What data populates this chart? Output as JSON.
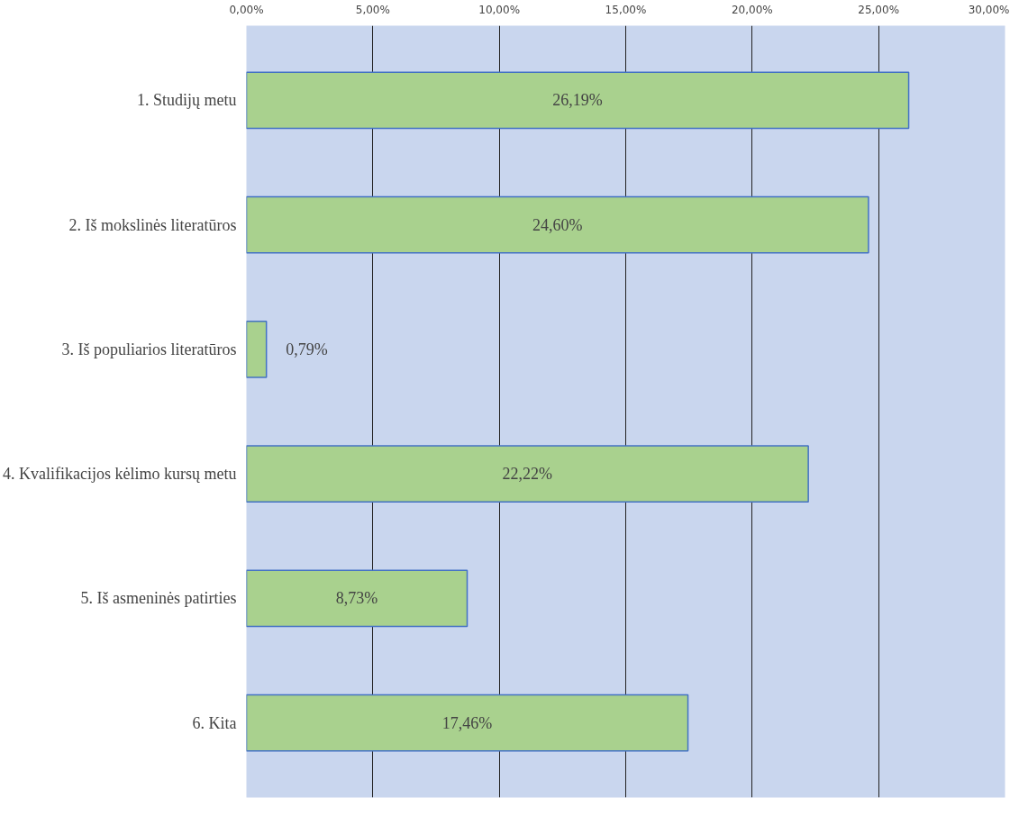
{
  "chart_data": {
    "type": "bar",
    "orientation": "horizontal",
    "categories": [
      "1. Studijų metu",
      "2. Iš mokslinės literatūros",
      "3. Iš populiarios literatūros",
      "4. Kvalifikacijos kėlimo kursų metu",
      "5. Iš asmeninės patirties",
      "6. Kita"
    ],
    "values": [
      26.19,
      24.6,
      0.79,
      22.22,
      8.73,
      17.46
    ],
    "value_labels": [
      "26,19%",
      "24,60%",
      "0,79%",
      "22,22%",
      "8,73%",
      "17,46%"
    ],
    "color": "#a9d18e",
    "xlim": [
      0,
      30
    ],
    "xticks": [
      {
        "value": 0,
        "label": "0,00%"
      },
      {
        "value": 5,
        "label": "5,00%"
      },
      {
        "value": 10,
        "label": "10,00%"
      },
      {
        "value": 15,
        "label": "15,00%"
      },
      {
        "value": 20,
        "label": "20,00%"
      },
      {
        "value": 25,
        "label": "25,00%"
      },
      {
        "value": 30,
        "label": "30,00%"
      }
    ],
    "grid": "x"
  }
}
